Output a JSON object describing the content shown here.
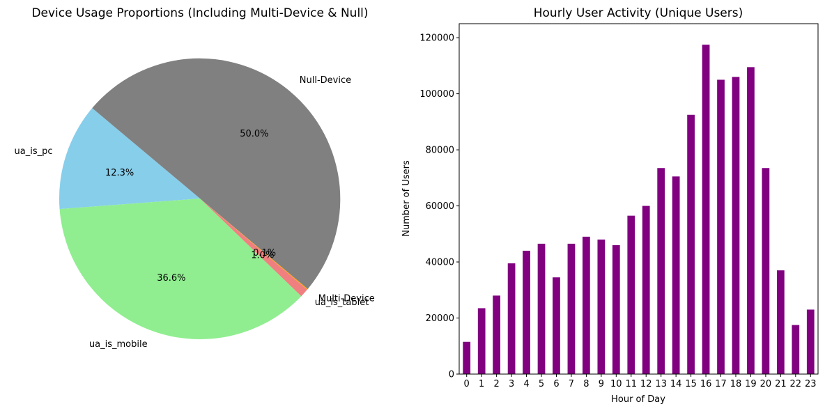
{
  "chart_data": [
    {
      "type": "pie",
      "title": "Device Usage Proportions (Including Multi-Device & Null)",
      "start_angle_deg": 140,
      "direction": "counterclockwise",
      "slices": [
        {
          "label": "ua_is_pc",
          "value": 12.3,
          "pct_label": "12.3%",
          "color": "#87ceeb"
        },
        {
          "label": "ua_is_mobile",
          "value": 36.6,
          "pct_label": "36.6%",
          "color": "#90ee90"
        },
        {
          "label": "ua_is_tablet",
          "value": 1.0,
          "pct_label": "1.0%",
          "color": "#f08080"
        },
        {
          "label": "Multi-Device",
          "value": 0.1,
          "pct_label": "0.1%",
          "color": "#ffa500"
        },
        {
          "label": "Null-Device",
          "value": 50.0,
          "pct_label": "50.0%",
          "color": "#808080"
        }
      ]
    },
    {
      "type": "bar",
      "title": "Hourly User Activity (Unique Users)",
      "xlabel": "Hour of Day",
      "ylabel": "Number of Users",
      "categories": [
        "0",
        "1",
        "2",
        "3",
        "4",
        "5",
        "6",
        "7",
        "8",
        "9",
        "10",
        "11",
        "12",
        "13",
        "14",
        "15",
        "16",
        "17",
        "18",
        "19",
        "20",
        "21",
        "22",
        "23"
      ],
      "values": [
        11500,
        23500,
        28000,
        39500,
        44000,
        46500,
        34500,
        46500,
        49000,
        48000,
        46000,
        56500,
        60000,
        73500,
        70500,
        92500,
        117500,
        105000,
        106000,
        109500,
        73500,
        37000,
        17500,
        23000
      ],
      "ylim": [
        0,
        125000
      ],
      "yticks": [
        0,
        20000,
        40000,
        60000,
        80000,
        100000,
        120000
      ],
      "bar_color": "#800080",
      "grid": false
    }
  ]
}
